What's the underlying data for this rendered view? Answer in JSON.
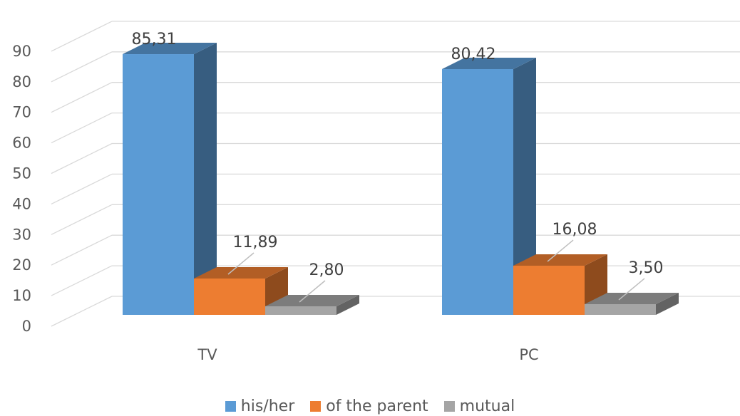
{
  "chart_data": {
    "type": "bar",
    "title": "",
    "xlabel": "",
    "ylabel": "",
    "categories": [
      "TV",
      "PC"
    ],
    "series": [
      {
        "name": "his/her",
        "values": [
          85.31,
          80.42
        ],
        "labels": [
          "85,31",
          "80,42"
        ],
        "color": "#5b9bd5"
      },
      {
        "name": "of the parent",
        "values": [
          11.89,
          16.08
        ],
        "labels": [
          "11,89",
          "16,08"
        ],
        "color": "#ed7d31"
      },
      {
        "name": "mutual",
        "values": [
          2.8,
          3.5
        ],
        "labels": [
          "2,80",
          "3,50"
        ],
        "color": "#a5a5a5"
      }
    ],
    "ylim": [
      0,
      90
    ],
    "yticks": [
      0,
      10,
      20,
      30,
      40,
      50,
      60,
      70,
      80,
      90
    ],
    "style": "3d-column",
    "grid": true,
    "legend": "bottom"
  }
}
